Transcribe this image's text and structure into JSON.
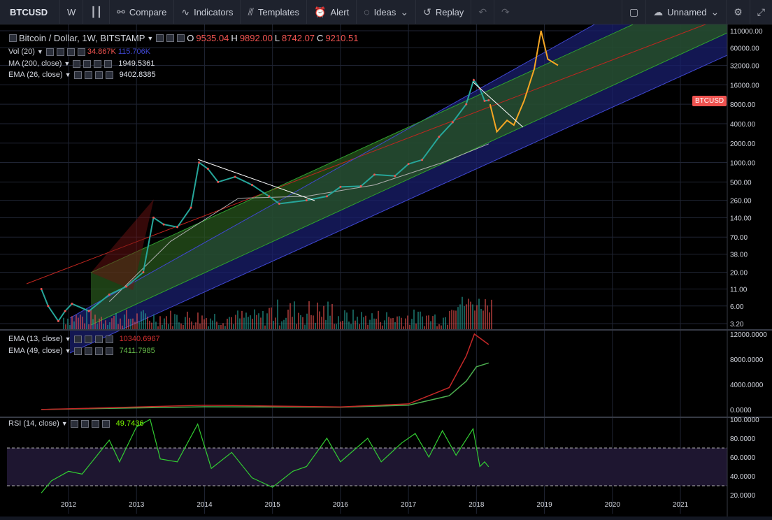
{
  "toolbar": {
    "symbol": "BTCUSD",
    "interval": "W",
    "compare": "Compare",
    "indicators": "Indicators",
    "templates": "Templates",
    "alert": "Alert",
    "ideas": "Ideas",
    "replay": "Replay",
    "layout_name": "Unnamed"
  },
  "main_legend": {
    "title": "Bitcoin / Dollar, 1W, BITSTAMP",
    "o_label": "O",
    "o": "9535.04",
    "h_label": "H",
    "h": "9892.00",
    "l_label": "L",
    "l": "8742.07",
    "c_label": "C",
    "c": "9210.51",
    "vol_name": "Vol (20)",
    "vol_v1": "34.867K",
    "vol_v2": "115.706K",
    "ma_name": "MA (200, close)",
    "ma_v": "1949.5361",
    "ema_name": "EMA (26, close)",
    "ema_v": "9402.8385"
  },
  "price_badge": "BTCUSD",
  "ema_pane_legend": {
    "ema13_name": "EMA (13, close)",
    "ema13_v": "10340.6967",
    "ema49_name": "EMA (49, close)",
    "ema49_v": "7411.7985"
  },
  "rsi_pane_legend": {
    "rsi_name": "RSI (14, close)",
    "rsi_v": "49.7436"
  },
  "chart_data": [
    {
      "type": "line",
      "scale": "log",
      "y_ticks": [
        "110000.00",
        "60000.00",
        "32000.00",
        "16000.00",
        "8000.00",
        "4000.00",
        "2000.00",
        "1000.00",
        "500.00",
        "260.00",
        "140.00",
        "70.00",
        "38.00",
        "20.00",
        "11.00",
        "6.00",
        "3.20"
      ],
      "x_ticks": [
        "2012",
        "2013",
        "2014",
        "2015",
        "2016",
        "2017",
        "2018",
        "2019",
        "2020",
        "2021"
      ],
      "series": [
        {
          "values": [
            {
              "x": 2011.6,
              "y": 11
            },
            {
              "x": 2011.7,
              "y": 6
            },
            {
              "x": 2011.85,
              "y": 3.5
            },
            {
              "x": 2011.95,
              "y": 5
            },
            {
              "x": 2012.05,
              "y": 6.5
            },
            {
              "x": 2012.3,
              "y": 5
            },
            {
              "x": 2012.6,
              "y": 9
            },
            {
              "x": 2012.85,
              "y": 12
            },
            {
              "x": 2013.1,
              "y": 20
            },
            {
              "x": 2013.25,
              "y": 140
            },
            {
              "x": 2013.4,
              "y": 110
            },
            {
              "x": 2013.6,
              "y": 100
            },
            {
              "x": 2013.8,
              "y": 200
            },
            {
              "x": 2013.92,
              "y": 1000
            },
            {
              "x": 2014.05,
              "y": 800
            },
            {
              "x": 2014.2,
              "y": 500
            },
            {
              "x": 2014.45,
              "y": 600
            },
            {
              "x": 2014.7,
              "y": 450
            },
            {
              "x": 2014.95,
              "y": 300
            },
            {
              "x": 2015.1,
              "y": 230
            },
            {
              "x": 2015.5,
              "y": 260
            },
            {
              "x": 2015.8,
              "y": 300
            },
            {
              "x": 2016.0,
              "y": 420
            },
            {
              "x": 2016.3,
              "y": 430
            },
            {
              "x": 2016.5,
              "y": 650
            },
            {
              "x": 2016.8,
              "y": 620
            },
            {
              "x": 2017.0,
              "y": 950
            },
            {
              "x": 2017.2,
              "y": 1100
            },
            {
              "x": 2017.45,
              "y": 2500
            },
            {
              "x": 2017.65,
              "y": 4200
            },
            {
              "x": 2017.85,
              "y": 8000
            },
            {
              "x": 2017.96,
              "y": 19000
            },
            {
              "x": 2018.05,
              "y": 14000
            },
            {
              "x": 2018.12,
              "y": 9000
            },
            {
              "x": 2018.18,
              "y": 9210
            }
          ]
        },
        {
          "values": [
            {
              "x": 2018.2,
              "y": 8000
            },
            {
              "x": 2018.3,
              "y": 3000
            },
            {
              "x": 2018.45,
              "y": 4500
            },
            {
              "x": 2018.55,
              "y": 3800
            },
            {
              "x": 2018.7,
              "y": 9000
            },
            {
              "x": 2018.85,
              "y": 28000
            },
            {
              "x": 2018.95,
              "y": 110000
            },
            {
              "x": 2019.05,
              "y": 40000
            },
            {
              "x": 2019.2,
              "y": 32000
            }
          ]
        }
      ]
    },
    {
      "type": "line",
      "y_ticks": [
        "12000.0000",
        "8000.0000",
        "4000.0000",
        "0.0000"
      ],
      "series": [
        {
          "name": "EMA (13, close)",
          "values": [
            {
              "x": 2011.6,
              "y": 10
            },
            {
              "x": 2014.0,
              "y": 700
            },
            {
              "x": 2016.0,
              "y": 420
            },
            {
              "x": 2017.0,
              "y": 900
            },
            {
              "x": 2017.6,
              "y": 3500
            },
            {
              "x": 2017.85,
              "y": 8500
            },
            {
              "x": 2017.97,
              "y": 12000
            },
            {
              "x": 2018.18,
              "y": 10340
            }
          ]
        },
        {
          "name": "EMA (49, close)",
          "values": [
            {
              "x": 2011.6,
              "y": 10
            },
            {
              "x": 2014.0,
              "y": 450
            },
            {
              "x": 2016.0,
              "y": 380
            },
            {
              "x": 2017.0,
              "y": 700
            },
            {
              "x": 2017.6,
              "y": 2200
            },
            {
              "x": 2017.85,
              "y": 4500
            },
            {
              "x": 2018.0,
              "y": 6800
            },
            {
              "x": 2018.18,
              "y": 7412
            }
          ]
        }
      ]
    },
    {
      "type": "line",
      "y_ticks": [
        "100.0000",
        "80.0000",
        "60.0000",
        "40.0000",
        "20.0000"
      ],
      "series": [
        {
          "name": "RSI (14, close)",
          "values": [
            {
              "x": 2011.6,
              "y": 22
            },
            {
              "x": 2011.75,
              "y": 35
            },
            {
              "x": 2012.0,
              "y": 45
            },
            {
              "x": 2012.2,
              "y": 42
            },
            {
              "x": 2012.4,
              "y": 60
            },
            {
              "x": 2012.6,
              "y": 78
            },
            {
              "x": 2012.75,
              "y": 55
            },
            {
              "x": 2013.0,
              "y": 92
            },
            {
              "x": 2013.2,
              "y": 100
            },
            {
              "x": 2013.35,
              "y": 58
            },
            {
              "x": 2013.6,
              "y": 55
            },
            {
              "x": 2013.9,
              "y": 95
            },
            {
              "x": 2014.1,
              "y": 48
            },
            {
              "x": 2014.4,
              "y": 65
            },
            {
              "x": 2014.7,
              "y": 38
            },
            {
              "x": 2015.0,
              "y": 28
            },
            {
              "x": 2015.3,
              "y": 45
            },
            {
              "x": 2015.5,
              "y": 50
            },
            {
              "x": 2015.8,
              "y": 80
            },
            {
              "x": 2016.0,
              "y": 55
            },
            {
              "x": 2016.4,
              "y": 80
            },
            {
              "x": 2016.6,
              "y": 55
            },
            {
              "x": 2016.9,
              "y": 75
            },
            {
              "x": 2017.1,
              "y": 85
            },
            {
              "x": 2017.3,
              "y": 60
            },
            {
              "x": 2017.5,
              "y": 88
            },
            {
              "x": 2017.7,
              "y": 62
            },
            {
              "x": 2017.95,
              "y": 90
            },
            {
              "x": 2018.05,
              "y": 50
            },
            {
              "x": 2018.12,
              "y": 55
            },
            {
              "x": 2018.18,
              "y": 49.7
            }
          ]
        }
      ]
    }
  ]
}
